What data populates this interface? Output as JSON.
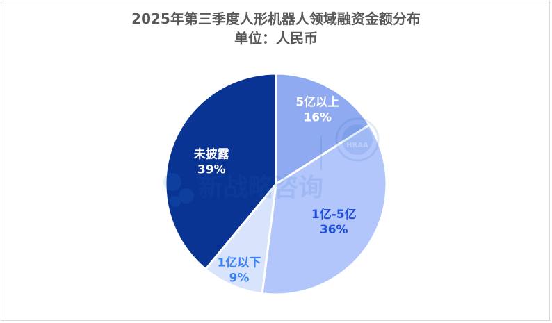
{
  "chart_data": {
    "type": "pie",
    "title": "2025年第三季度人形机器人领域融资金额分布",
    "subtitle": "单位：人民币",
    "slices": [
      {
        "label": "5亿以上",
        "value": 16,
        "percent_label": "16%",
        "color": "#8faaf0",
        "label_color": "#ffffff"
      },
      {
        "label": "1亿-5亿",
        "value": 36,
        "percent_label": "36%",
        "color": "#b3c6fb",
        "label_color": "#1d4ed8"
      },
      {
        "label": "1亿以下",
        "value": 9,
        "percent_label": "9%",
        "color": "#d8e3fc",
        "label_color": "#3b82f6"
      },
      {
        "label": "未披露",
        "value": 39,
        "percent_label": "39%",
        "color": "#0a3494",
        "label_color": "#ffffff"
      }
    ],
    "start_angle_deg": 0,
    "direction": "clockwise"
  },
  "watermark": {
    "text": "新战略咨询",
    "badge_text": "HRAA"
  }
}
